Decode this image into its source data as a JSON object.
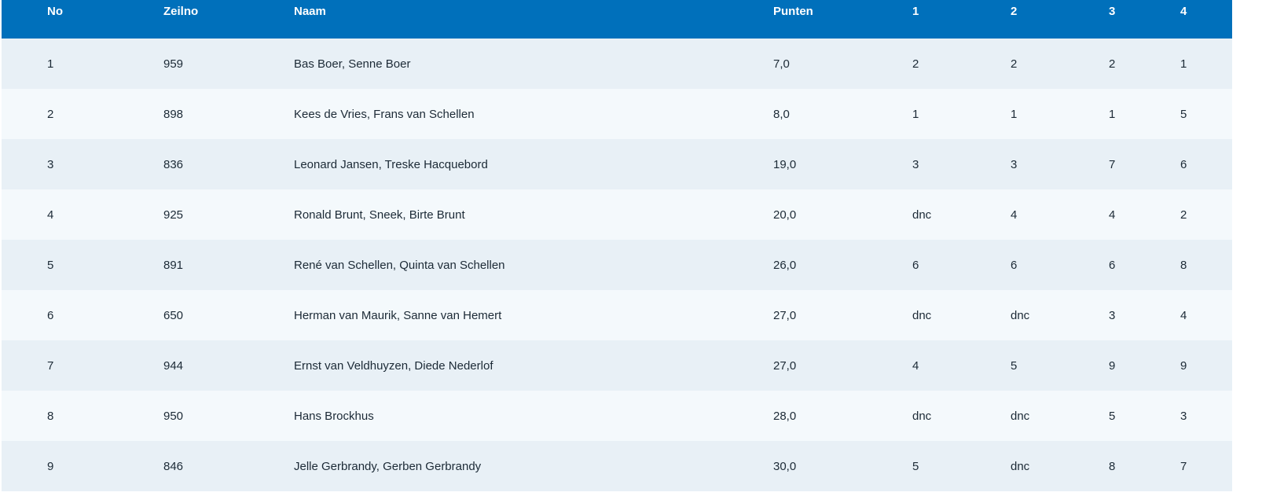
{
  "table": {
    "headers": {
      "no": "No",
      "zeilno": "Zeilno",
      "naam": "Naam",
      "punten": "Punten",
      "r1": "1",
      "r2": "2",
      "r3": "3",
      "r4": "4"
    },
    "rows": [
      {
        "no": "1",
        "zeilno": "959",
        "naam": "Bas Boer, Senne Boer",
        "punten": "7,0",
        "r1": "2",
        "r2": "2",
        "r3": "2",
        "r4": "1"
      },
      {
        "no": "2",
        "zeilno": "898",
        "naam": "Kees de Vries, Frans van Schellen",
        "punten": "8,0",
        "r1": "1",
        "r2": "1",
        "r3": "1",
        "r4": "5"
      },
      {
        "no": "3",
        "zeilno": "836",
        "naam": "Leonard Jansen, Treske Hacquebord",
        "punten": "19,0",
        "r1": "3",
        "r2": "3",
        "r3": "7",
        "r4": "6"
      },
      {
        "no": "4",
        "zeilno": "925",
        "naam": "Ronald Brunt, Sneek, Birte Brunt",
        "punten": "20,0",
        "r1": "dnc",
        "r2": "4",
        "r3": "4",
        "r4": "2"
      },
      {
        "no": "5",
        "zeilno": "891",
        "naam": "René van Schellen, Quinta van Schellen",
        "punten": "26,0",
        "r1": "6",
        "r2": "6",
        "r3": "6",
        "r4": "8"
      },
      {
        "no": "6",
        "zeilno": "650",
        "naam": "Herman van Maurik, Sanne van Hemert",
        "punten": "27,0",
        "r1": "dnc",
        "r2": "dnc",
        "r3": "3",
        "r4": "4"
      },
      {
        "no": "7",
        "zeilno": "944",
        "naam": "Ernst van Veldhuyzen, Diede Nederlof",
        "punten": "27,0",
        "r1": "4",
        "r2": "5",
        "r3": "9",
        "r4": "9"
      },
      {
        "no": "8",
        "zeilno": "950",
        "naam": "Hans Brockhus",
        "punten": "28,0",
        "r1": "dnc",
        "r2": "dnc",
        "r3": "5",
        "r4": "3"
      },
      {
        "no": "9",
        "zeilno": "846",
        "naam": "Jelle Gerbrandy, Gerben Gerbrandy",
        "punten": "30,0",
        "r1": "5",
        "r2": "dnc",
        "r3": "8",
        "r4": "7"
      }
    ]
  },
  "colors": {
    "header_bg": "#0070bb",
    "header_text": "#ffffff",
    "row_odd_bg": "#e8f0f6",
    "row_even_bg": "#f4f9fc"
  }
}
